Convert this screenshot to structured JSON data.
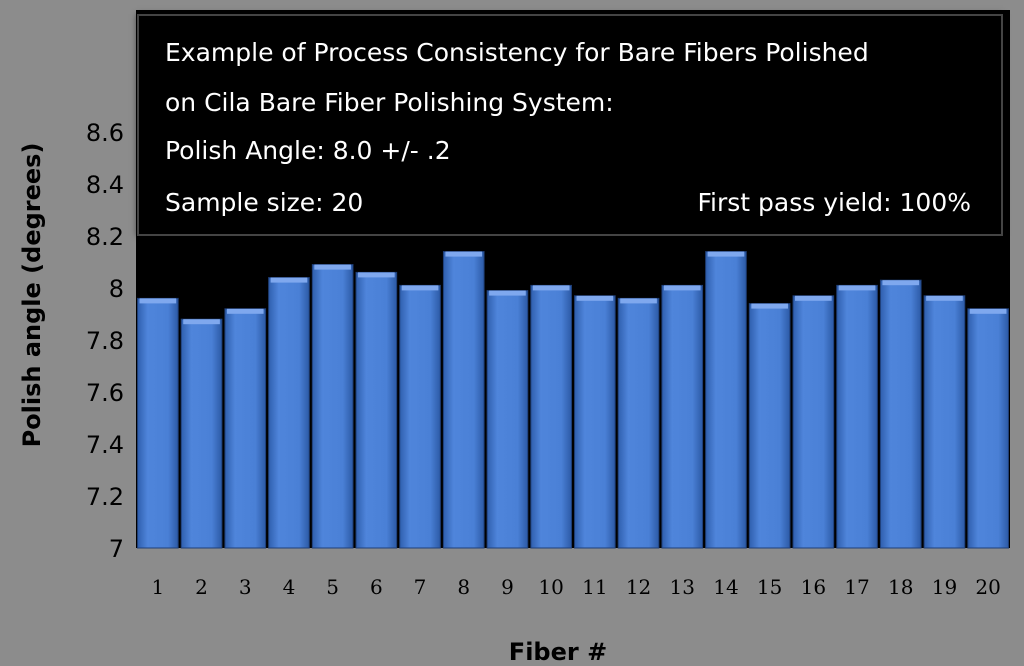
{
  "chart_data": {
    "type": "bar",
    "title_lines": [
      "Example of Process Consistency for Bare Fibers Polished",
      "on Cila Bare Fiber Polishing System:",
      "Polish Angle: 8.0 +/- .2"
    ],
    "sample_size_text": "Sample size: 20",
    "yield_text": "First pass yield:  100%",
    "xlabel": "Fiber #",
    "ylabel": "Polish angle (degrees)",
    "ylim": [
      7,
      8.7
    ],
    "yticks": [
      7,
      7.2,
      7.4,
      7.6,
      7.8,
      8,
      8.2,
      8.4,
      8.6
    ],
    "ytick_labels": [
      "7",
      "7.2",
      "7.4",
      "7.6",
      "7.8",
      "8",
      "8.2",
      "8.4",
      "8.6"
    ],
    "categories": [
      "1",
      "2",
      "3",
      "4",
      "5",
      "6",
      "7",
      "8",
      "9",
      "10",
      "11",
      "12",
      "13",
      "14",
      "15",
      "16",
      "17",
      "18",
      "19",
      "20"
    ],
    "values": [
      7.96,
      7.88,
      7.92,
      8.04,
      8.09,
      8.06,
      8.01,
      8.14,
      7.99,
      8.01,
      7.97,
      7.96,
      8.01,
      8.14,
      7.94,
      7.97,
      8.01,
      8.03,
      7.97,
      7.92
    ],
    "bar_color": "#4f81d4",
    "grid": false
  }
}
